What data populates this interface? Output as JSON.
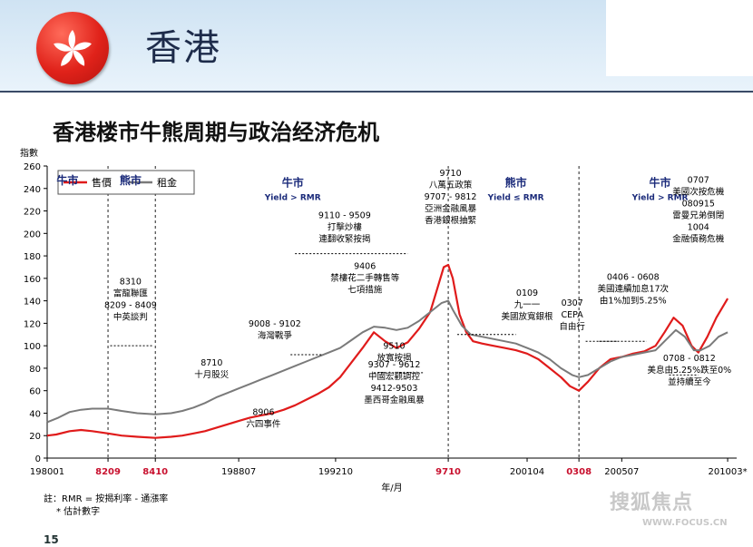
{
  "header": {
    "title": "香港"
  },
  "subtitle": "香港楼市牛熊周期与政治经济危机",
  "footnote": {
    "line1": "註：RMR = 按揭利率 - 通漲率",
    "line2": "* 估計數字"
  },
  "page_number": "15",
  "watermark": {
    "text": "搜狐焦点",
    "url": "WWW.FOCUS.CN"
  },
  "colors": {
    "price": "#e01b1b",
    "rent": "#7a7a7a",
    "red_label": "#c8102e",
    "market_label": "#1a2a7a"
  },
  "chart_data": {
    "type": "line",
    "ylabel": "指數",
    "xlabel": "年/月",
    "ylim": [
      0,
      260
    ],
    "yticks": [
      0,
      20,
      40,
      60,
      80,
      100,
      120,
      140,
      160,
      180,
      200,
      220,
      240,
      260
    ],
    "xticks": [
      {
        "label": "198001",
        "x": 1980.0,
        "red": false
      },
      {
        "label": "8209",
        "x": 1982.7,
        "red": true
      },
      {
        "label": "8410",
        "x": 1984.8,
        "red": true
      },
      {
        "label": "198807",
        "x": 1988.5,
        "red": false
      },
      {
        "label": "199210",
        "x": 1992.8,
        "red": false
      },
      {
        "label": "9710",
        "x": 1997.8,
        "red": true
      },
      {
        "label": "200104",
        "x": 2001.3,
        "red": false
      },
      {
        "label": "0308",
        "x": 2003.6,
        "red": true
      },
      {
        "label": "200507",
        "x": 2005.5,
        "red": false
      },
      {
        "label": "201003*",
        "x": 2010.2,
        "red": false
      }
    ],
    "vlines": [
      1982.7,
      1984.8,
      1997.8,
      2003.6
    ],
    "series": [
      {
        "name": "售價",
        "color": "#e01b1b",
        "points": [
          [
            1980.0,
            20
          ],
          [
            1980.4,
            21
          ],
          [
            1981.0,
            24
          ],
          [
            1981.5,
            25
          ],
          [
            1982.0,
            24
          ],
          [
            1982.7,
            22
          ],
          [
            1983.3,
            20
          ],
          [
            1984.0,
            19
          ],
          [
            1984.8,
            18
          ],
          [
            1985.5,
            19
          ],
          [
            1986.0,
            20
          ],
          [
            1986.5,
            22
          ],
          [
            1987.0,
            24
          ],
          [
            1987.5,
            27
          ],
          [
            1988.0,
            30
          ],
          [
            1988.5,
            33
          ],
          [
            1989.0,
            36
          ],
          [
            1989.5,
            38
          ],
          [
            1990.0,
            40
          ],
          [
            1990.5,
            43
          ],
          [
            1991.0,
            47
          ],
          [
            1991.5,
            52
          ],
          [
            1992.0,
            57
          ],
          [
            1992.5,
            63
          ],
          [
            1993.0,
            72
          ],
          [
            1993.5,
            85
          ],
          [
            1994.0,
            98
          ],
          [
            1994.5,
            112
          ],
          [
            1995.0,
            104
          ],
          [
            1995.5,
            98
          ],
          [
            1996.0,
            103
          ],
          [
            1996.5,
            115
          ],
          [
            1997.0,
            130
          ],
          [
            1997.3,
            150
          ],
          [
            1997.6,
            170
          ],
          [
            1997.8,
            172
          ],
          [
            1998.0,
            160
          ],
          [
            1998.3,
            128
          ],
          [
            1998.6,
            112
          ],
          [
            1998.9,
            104
          ],
          [
            1999.3,
            102
          ],
          [
            1999.8,
            100
          ],
          [
            2000.3,
            98
          ],
          [
            2000.8,
            96
          ],
          [
            2001.3,
            93
          ],
          [
            2001.8,
            88
          ],
          [
            2002.3,
            80
          ],
          [
            2002.8,
            72
          ],
          [
            2003.2,
            64
          ],
          [
            2003.6,
            60
          ],
          [
            2004.0,
            68
          ],
          [
            2004.5,
            80
          ],
          [
            2005.0,
            88
          ],
          [
            2005.5,
            90
          ],
          [
            2006.0,
            93
          ],
          [
            2006.5,
            95
          ],
          [
            2007.0,
            100
          ],
          [
            2007.4,
            112
          ],
          [
            2007.8,
            125
          ],
          [
            2008.2,
            118
          ],
          [
            2008.6,
            100
          ],
          [
            2008.9,
            94
          ],
          [
            2009.3,
            108
          ],
          [
            2009.7,
            125
          ],
          [
            2010.2,
            142
          ]
        ]
      },
      {
        "name": "租金",
        "color": "#7a7a7a",
        "points": [
          [
            1980.0,
            32
          ],
          [
            1980.5,
            36
          ],
          [
            1981.0,
            41
          ],
          [
            1981.5,
            43
          ],
          [
            1982.0,
            44
          ],
          [
            1982.7,
            44
          ],
          [
            1983.3,
            42
          ],
          [
            1984.0,
            40
          ],
          [
            1984.8,
            39
          ],
          [
            1985.5,
            40
          ],
          [
            1986.0,
            42
          ],
          [
            1986.5,
            45
          ],
          [
            1987.0,
            49
          ],
          [
            1987.5,
            54
          ],
          [
            1988.0,
            58
          ],
          [
            1988.5,
            62
          ],
          [
            1989.0,
            66
          ],
          [
            1989.5,
            70
          ],
          [
            1990.0,
            74
          ],
          [
            1990.5,
            78
          ],
          [
            1991.0,
            82
          ],
          [
            1991.5,
            86
          ],
          [
            1992.0,
            90
          ],
          [
            1992.5,
            94
          ],
          [
            1993.0,
            98
          ],
          [
            1993.5,
            105
          ],
          [
            1994.0,
            112
          ],
          [
            1994.5,
            117
          ],
          [
            1995.0,
            116
          ],
          [
            1995.5,
            114
          ],
          [
            1996.0,
            116
          ],
          [
            1996.5,
            122
          ],
          [
            1997.0,
            130
          ],
          [
            1997.5,
            138
          ],
          [
            1997.8,
            140
          ],
          [
            1998.0,
            132
          ],
          [
            1998.4,
            118
          ],
          [
            1998.8,
            110
          ],
          [
            1999.3,
            108
          ],
          [
            1999.8,
            106
          ],
          [
            2000.3,
            104
          ],
          [
            2000.8,
            102
          ],
          [
            2001.3,
            98
          ],
          [
            2001.8,
            94
          ],
          [
            2002.3,
            88
          ],
          [
            2002.8,
            80
          ],
          [
            2003.3,
            74
          ],
          [
            2003.6,
            72
          ],
          [
            2004.0,
            74
          ],
          [
            2004.5,
            80
          ],
          [
            2005.0,
            86
          ],
          [
            2005.5,
            90
          ],
          [
            2006.0,
            92
          ],
          [
            2006.5,
            94
          ],
          [
            2007.0,
            96
          ],
          [
            2007.5,
            106
          ],
          [
            2007.9,
            114
          ],
          [
            2008.3,
            108
          ],
          [
            2008.7,
            96
          ],
          [
            2009.0,
            96
          ],
          [
            2009.4,
            100
          ],
          [
            2009.8,
            108
          ],
          [
            2010.2,
            112
          ]
        ]
      }
    ],
    "market_labels": [
      {
        "text": "牛市",
        "x": 1980.9,
        "y": 244,
        "sub": ""
      },
      {
        "text": "熊市",
        "x": 1983.7,
        "y": 244,
        "sub": ""
      },
      {
        "text": "牛市",
        "x": 1990.9,
        "y": 242,
        "sub": "Yield > RMR"
      },
      {
        "text": "熊市",
        "x": 2000.8,
        "y": 242,
        "sub": "Yield ≤ RMR"
      },
      {
        "text": "牛市",
        "x": 2007.2,
        "y": 242,
        "sub": "Yield > RMR"
      }
    ],
    "annotations": [
      {
        "lines": [
          "8310",
          "富龍聯匯",
          "8209 - 8409",
          "中英談判"
        ],
        "x": 1983.7,
        "y": 139
      },
      {
        "lines": [
          "8710",
          "十月股災"
        ],
        "x": 1987.3,
        "y": 77
      },
      {
        "lines": [
          "9008 - 9102",
          "海灣戰爭"
        ],
        "x": 1990.1,
        "y": 112
      },
      {
        "lines": [
          "8906",
          "六四事件"
        ],
        "x": 1989.6,
        "y": 33
      },
      {
        "lines": [
          "9110 - 9509",
          "打擊炒樓",
          "連翻收緊按揭"
        ],
        "x": 1993.2,
        "y": 203
      },
      {
        "lines": [
          "9406",
          "禁樓花二手轉售等",
          "七項措施"
        ],
        "x": 1994.1,
        "y": 158
      },
      {
        "lines": [
          "9510",
          "放寬按揭"
        ],
        "x": 1995.4,
        "y": 92
      },
      {
        "lines": [
          "9307 - 9612",
          "中國宏觀調控",
          "9412-9503",
          "墨西哥金融風暴"
        ],
        "x": 1995.4,
        "y": 65
      },
      {
        "lines": [
          "9710",
          "八萬五政策",
          "9707 - 9812",
          "亞洲金融風暴",
          "香港銀根抽緊"
        ],
        "x": 1997.9,
        "y": 230
      },
      {
        "lines": [
          "0109",
          "九一一",
          "美國放寬銀根"
        ],
        "x": 2001.3,
        "y": 134
      },
      {
        "lines": [
          "0307",
          "CEPA",
          "自由行"
        ],
        "x": 2003.3,
        "y": 125
      },
      {
        "lines": [
          "0406 - 0608",
          "美國連續加息17次",
          "由1%加到5.25%"
        ],
        "x": 2006.0,
        "y": 148
      },
      {
        "lines": [
          "0707",
          "美國次按危機",
          "080915",
          "雷曼兄弟倒閉",
          "1004",
          "金融債務危機"
        ],
        "x": 2008.9,
        "y": 219
      },
      {
        "lines": [
          "0708 - 0812",
          "美息由5.25%跌至0%",
          "並持續至今"
        ],
        "x": 2008.5,
        "y": 76
      }
    ]
  }
}
